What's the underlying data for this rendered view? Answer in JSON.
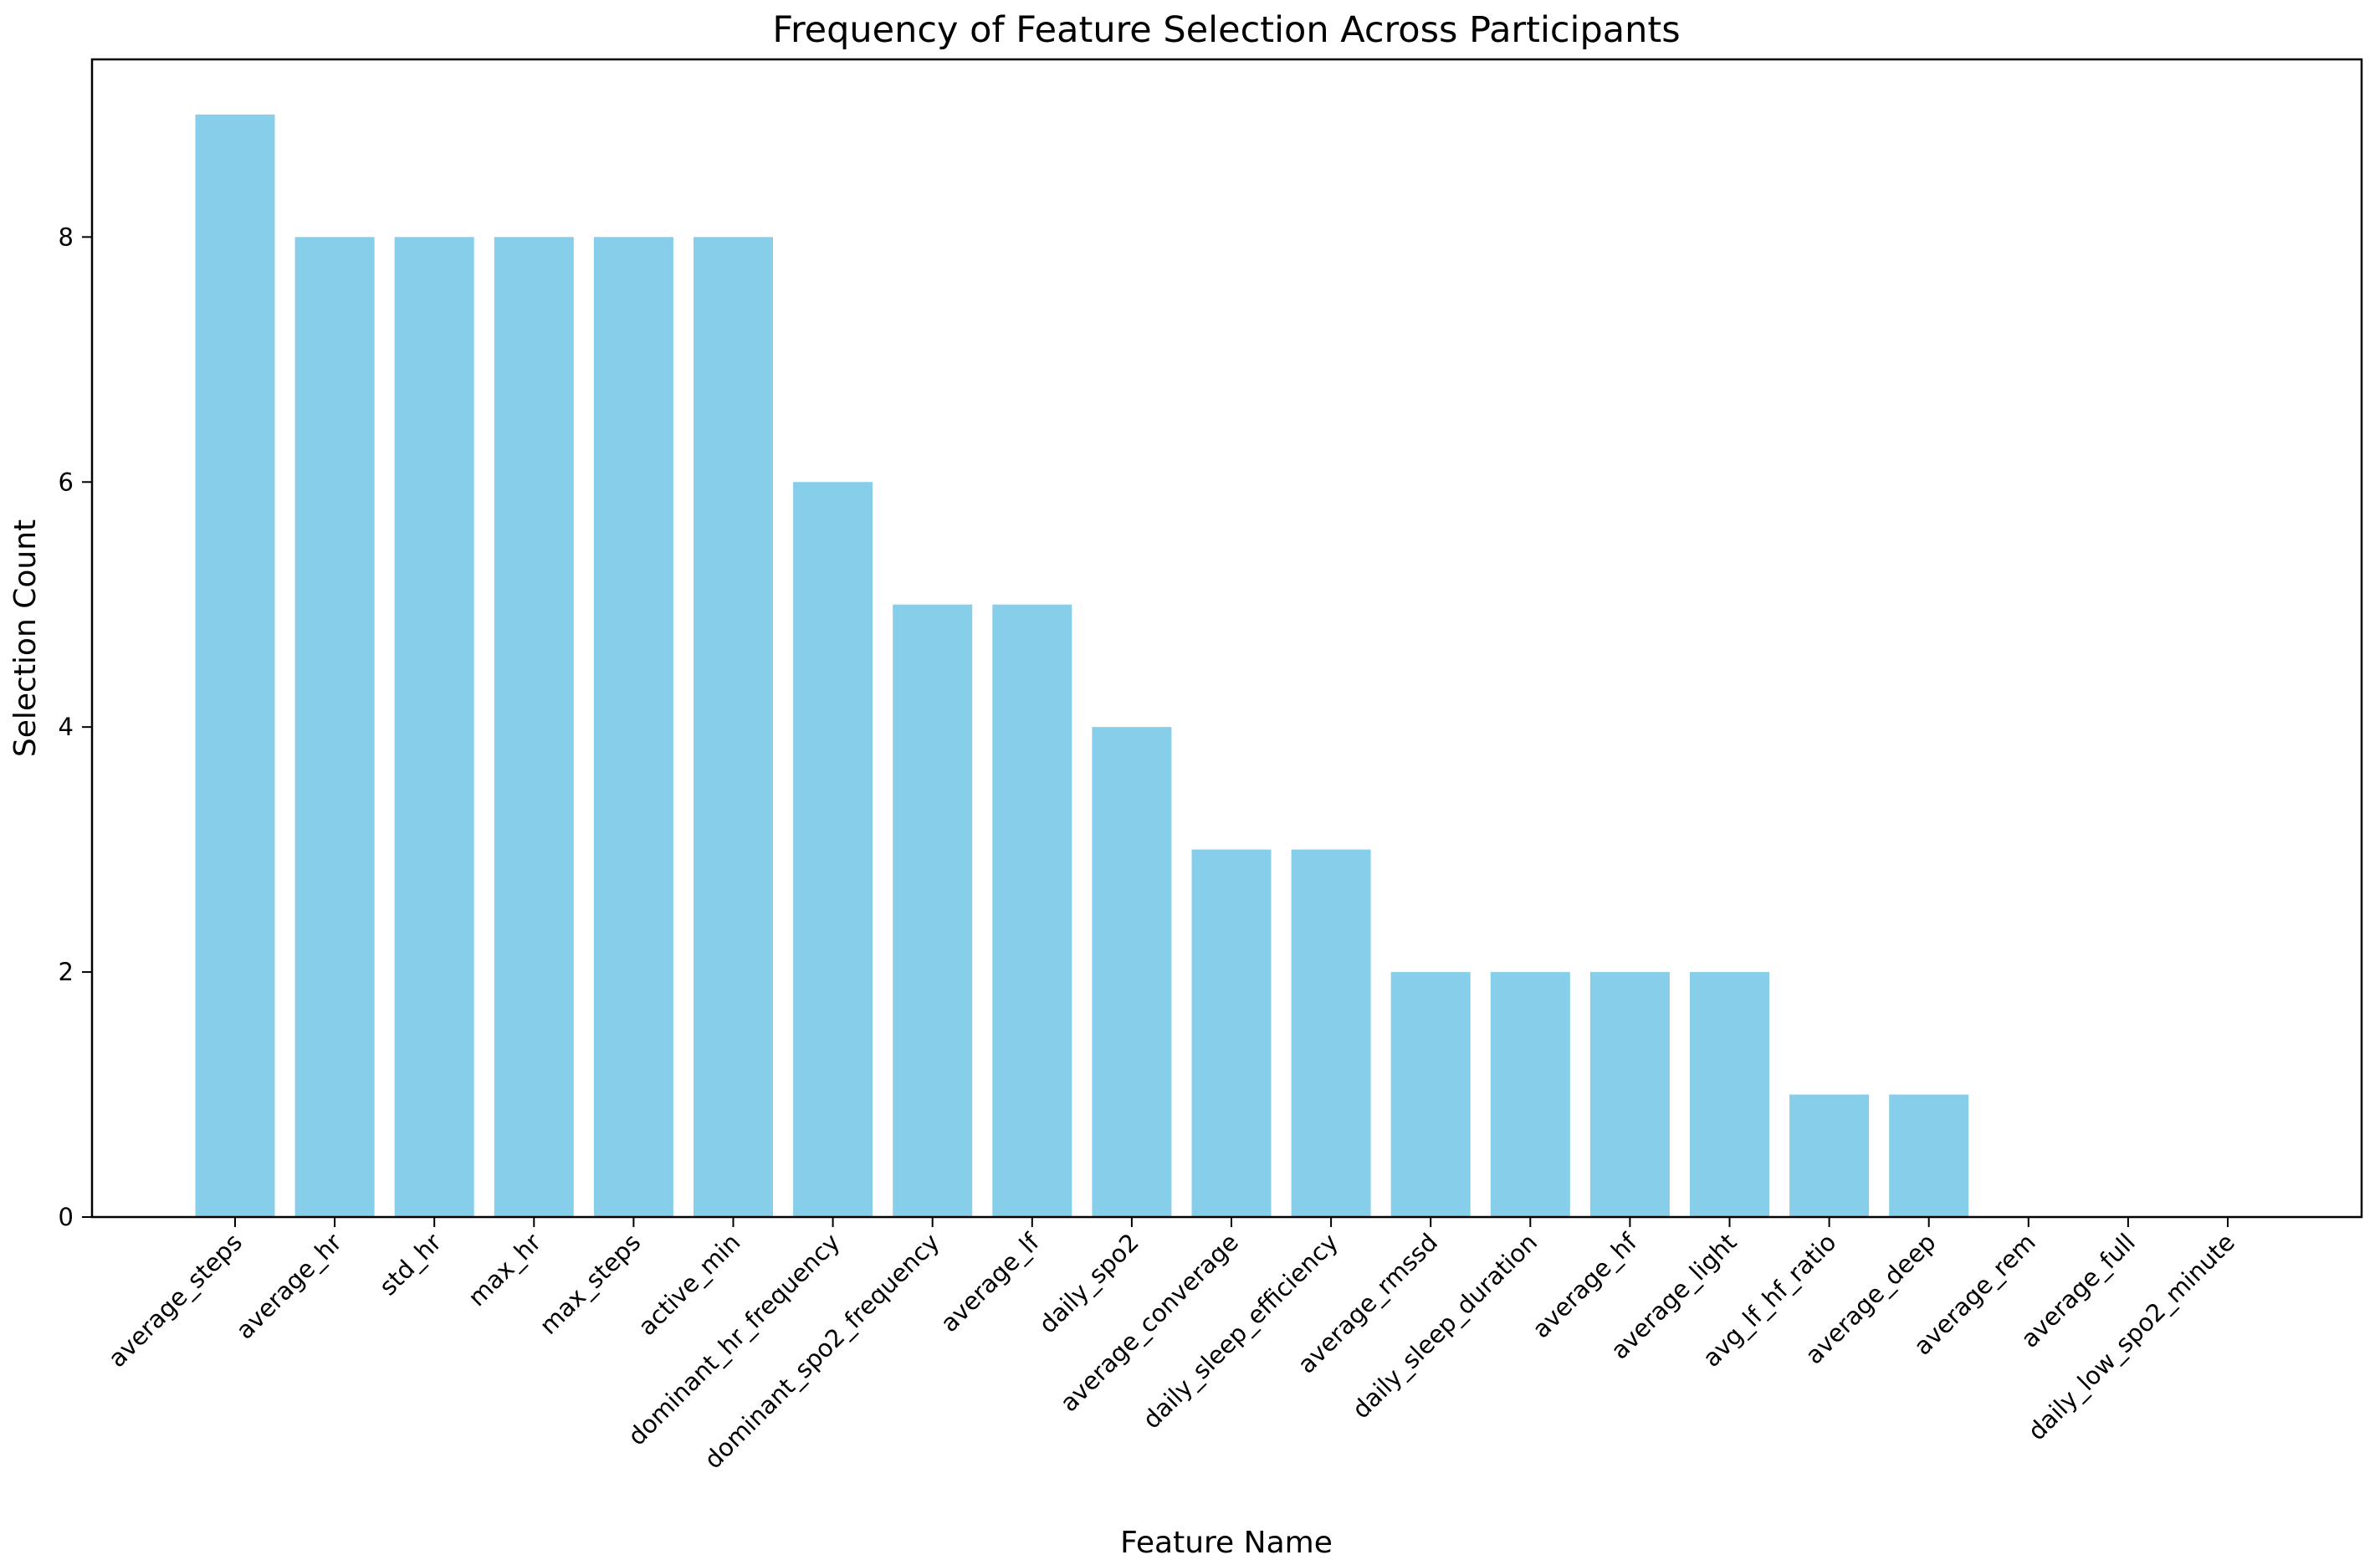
{
  "chart_data": {
    "type": "bar",
    "title": "Frequency of Feature Selection Across Participants",
    "xlabel": "Feature Name",
    "ylabel": "Selection Count",
    "categories": [
      "average_steps",
      "average_hr",
      "std_hr",
      "max_hr",
      "max_steps",
      "active_min",
      "dominant_hr_frequency",
      "dominant_spo2_frequency",
      "average_lf",
      "daily_spo2",
      "average_converage",
      "daily_sleep_efficiency",
      "average_rmssd",
      "daily_sleep_duration",
      "average_hf",
      "average_light",
      "avg_lf_hf_ratio",
      "average_deep",
      "average_rem",
      "average_full",
      "daily_low_spo2_minute"
    ],
    "values": [
      9,
      8,
      8,
      8,
      8,
      8,
      6,
      5,
      5,
      4,
      3,
      3,
      2,
      2,
      2,
      2,
      1,
      1,
      0,
      0,
      0
    ],
    "ylim": [
      0,
      9.45
    ],
    "yticks": [
      0,
      2,
      4,
      6,
      8
    ],
    "grid": false,
    "bar_color": "#87ceeb"
  }
}
